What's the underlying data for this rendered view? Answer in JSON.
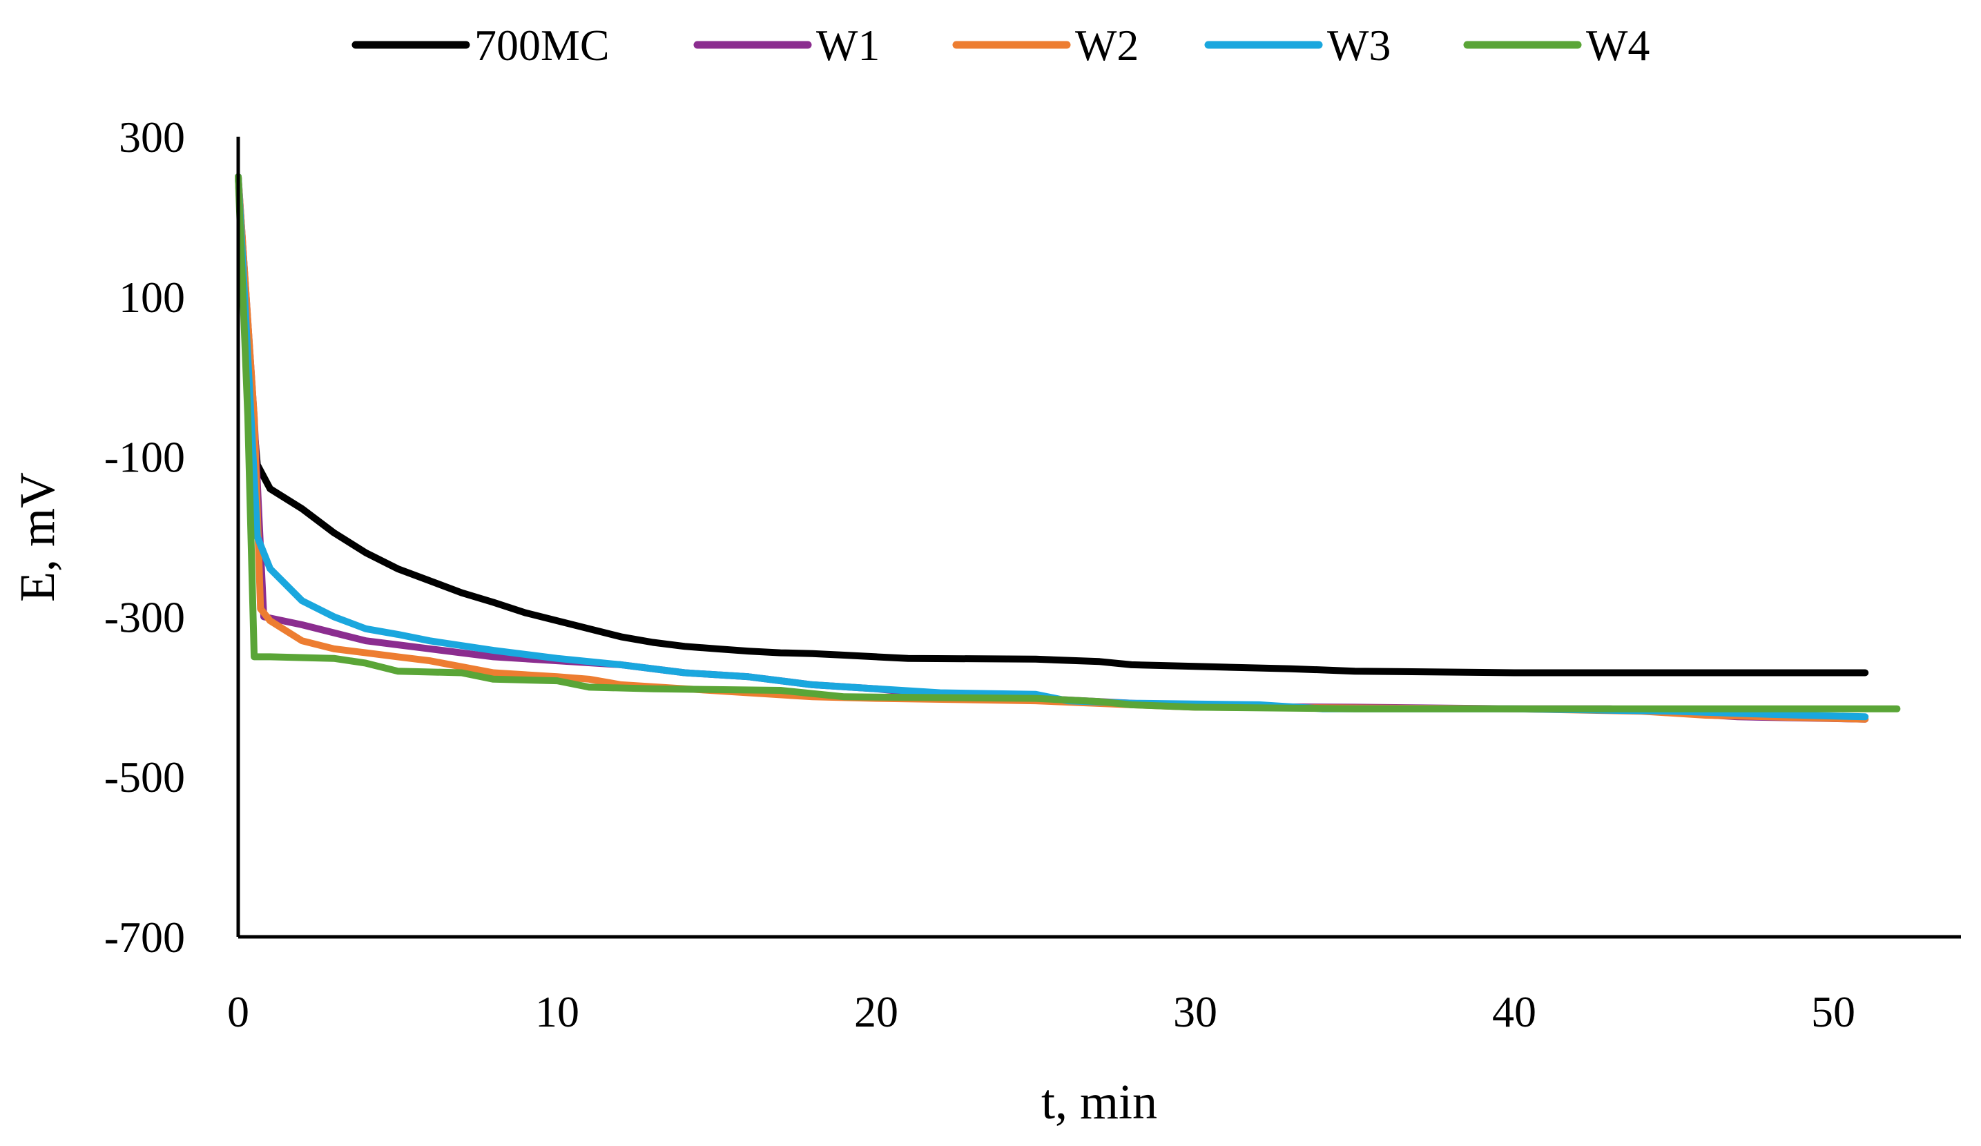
{
  "chart_data": {
    "type": "line",
    "title": "",
    "xlabel": "t, min",
    "ylabel": "E, mV",
    "xlim": [
      0,
      55
    ],
    "ylim": [
      -700,
      300
    ],
    "xticks": [
      0,
      10,
      20,
      30,
      40,
      50
    ],
    "yticks": [
      300,
      100,
      -100,
      -300,
      -500,
      -700
    ],
    "legend_position": "top",
    "grid": false,
    "series": [
      {
        "name": "700MC",
        "color": "#000000",
        "points": [
          [
            0,
            250
          ],
          [
            0.2,
            100
          ],
          [
            0.4,
            -20
          ],
          [
            0.6,
            -110
          ],
          [
            1,
            -140
          ],
          [
            2,
            -165
          ],
          [
            3,
            -195
          ],
          [
            4,
            -220
          ],
          [
            5,
            -240
          ],
          [
            6,
            -255
          ],
          [
            7,
            -270
          ],
          [
            8,
            -282
          ],
          [
            9,
            -295
          ],
          [
            10,
            -305
          ],
          [
            11,
            -315
          ],
          [
            12,
            -325
          ],
          [
            13,
            -332
          ],
          [
            14,
            -337
          ],
          [
            15,
            -340
          ],
          [
            16,
            -343
          ],
          [
            17,
            -345
          ],
          [
            18,
            -346
          ],
          [
            19,
            -348
          ],
          [
            20,
            -350
          ],
          [
            21,
            -352
          ],
          [
            25,
            -353
          ],
          [
            27,
            -356
          ],
          [
            28,
            -360
          ],
          [
            30,
            -362
          ],
          [
            33,
            -365
          ],
          [
            35,
            -368
          ],
          [
            40,
            -370
          ],
          [
            45,
            -370
          ],
          [
            51,
            -370
          ]
        ]
      },
      {
        "name": "W1",
        "color": "#8B2D8F",
        "points": [
          [
            0,
            250
          ],
          [
            0.5,
            -50
          ],
          [
            0.8,
            -300
          ],
          [
            2,
            -310
          ],
          [
            3,
            -320
          ],
          [
            4,
            -330
          ],
          [
            5,
            -335
          ],
          [
            6,
            -340
          ],
          [
            8,
            -350
          ],
          [
            10,
            -355
          ],
          [
            12,
            -360
          ],
          [
            14,
            -370
          ],
          [
            16,
            -375
          ],
          [
            18,
            -385
          ],
          [
            20,
            -390
          ],
          [
            22,
            -398
          ],
          [
            25,
            -402
          ],
          [
            28,
            -408
          ],
          [
            30,
            -412
          ],
          [
            35,
            -413
          ],
          [
            40,
            -415
          ],
          [
            43,
            -415
          ],
          [
            45,
            -420
          ],
          [
            47,
            -425
          ],
          [
            51,
            -428
          ]
        ]
      },
      {
        "name": "W2",
        "color": "#ED7D31",
        "points": [
          [
            0,
            250
          ],
          [
            0.5,
            -50
          ],
          [
            0.7,
            -290
          ],
          [
            1,
            -305
          ],
          [
            2,
            -330
          ],
          [
            3,
            -340
          ],
          [
            4,
            -345
          ],
          [
            5,
            -350
          ],
          [
            6,
            -355
          ],
          [
            8,
            -370
          ],
          [
            10,
            -375
          ],
          [
            11,
            -378
          ],
          [
            12,
            -385
          ],
          [
            14,
            -390
          ],
          [
            16,
            -395
          ],
          [
            18,
            -400
          ],
          [
            20,
            -402
          ],
          [
            25,
            -405
          ],
          [
            28,
            -410
          ],
          [
            30,
            -413
          ],
          [
            35,
            -414
          ],
          [
            40,
            -415
          ],
          [
            44,
            -418
          ],
          [
            46,
            -423
          ],
          [
            51,
            -428
          ]
        ]
      },
      {
        "name": "W3",
        "color": "#1AA7DE",
        "points": [
          [
            0,
            250
          ],
          [
            0.4,
            -50
          ],
          [
            0.6,
            -200
          ],
          [
            1,
            -240
          ],
          [
            2,
            -280
          ],
          [
            3,
            -300
          ],
          [
            4,
            -315
          ],
          [
            5,
            -322
          ],
          [
            6,
            -330
          ],
          [
            8,
            -342
          ],
          [
            10,
            -352
          ],
          [
            12,
            -360
          ],
          [
            14,
            -370
          ],
          [
            16,
            -375
          ],
          [
            18,
            -385
          ],
          [
            20,
            -390
          ],
          [
            22,
            -395
          ],
          [
            25,
            -397
          ],
          [
            26,
            -405
          ],
          [
            28,
            -408
          ],
          [
            32,
            -410
          ],
          [
            34,
            -415
          ],
          [
            40,
            -415
          ],
          [
            45,
            -418
          ],
          [
            48,
            -422
          ],
          [
            51,
            -425
          ]
        ]
      },
      {
        "name": "W4",
        "color": "#5AA537",
        "points": [
          [
            0,
            250
          ],
          [
            0.3,
            -50
          ],
          [
            0.5,
            -350
          ],
          [
            1,
            -350
          ],
          [
            3,
            -352
          ],
          [
            4,
            -358
          ],
          [
            5,
            -368
          ],
          [
            7,
            -370
          ],
          [
            8,
            -378
          ],
          [
            10,
            -380
          ],
          [
            11,
            -388
          ],
          [
            13,
            -390
          ],
          [
            17,
            -392
          ],
          [
            19,
            -400
          ],
          [
            25,
            -402
          ],
          [
            27,
            -406
          ],
          [
            28,
            -410
          ],
          [
            30,
            -413
          ],
          [
            35,
            -415
          ],
          [
            40,
            -415
          ],
          [
            45,
            -415
          ],
          [
            52,
            -415
          ]
        ]
      }
    ]
  }
}
